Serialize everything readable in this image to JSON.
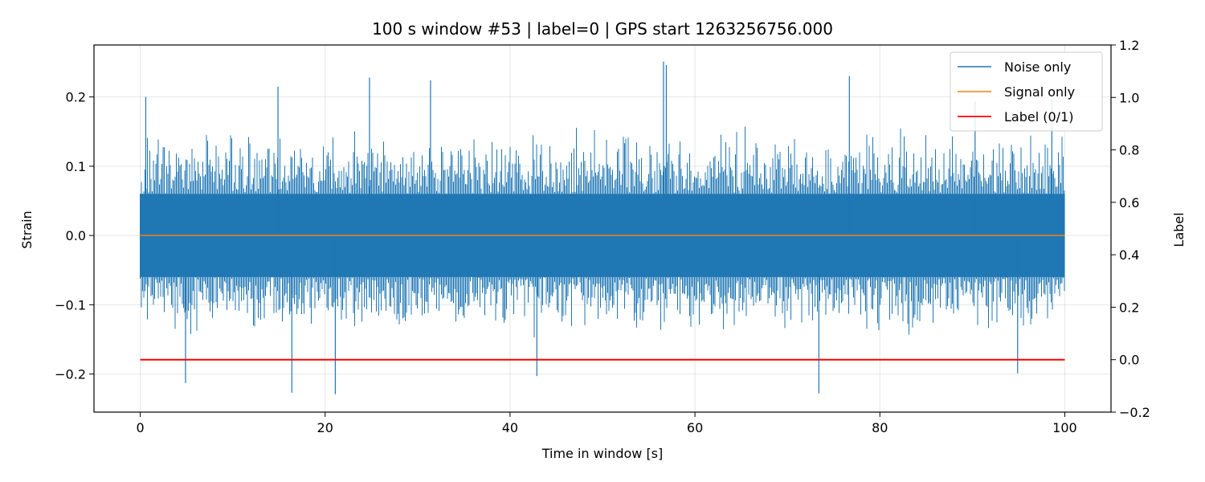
{
  "chart_data": {
    "type": "line",
    "title": "100 s window #53 | label=0 | GPS start 1263256756.000",
    "xlabel": "Time in window [s]",
    "ylabel": "Strain",
    "y2label": "Label",
    "xlim": [
      -5,
      105
    ],
    "ylim": [
      -0.255,
      0.275
    ],
    "y2lim": [
      -0.2,
      1.2
    ],
    "xticks": [
      0,
      20,
      40,
      60,
      80,
      100
    ],
    "xtick_labels": [
      "0",
      "20",
      "40",
      "60",
      "80",
      "100"
    ],
    "yticks": [
      -0.2,
      -0.1,
      0.0,
      0.1,
      0.2
    ],
    "ytick_labels": [
      "−0.2",
      "−0.1",
      "0.0",
      "0.1",
      "0.2"
    ],
    "y2ticks": [
      -0.2,
      0.0,
      0.2,
      0.4,
      0.6,
      0.8,
      1.0,
      1.2
    ],
    "y2tick_labels": [
      "−0.2",
      "0.0",
      "0.2",
      "0.4",
      "0.6",
      "0.8",
      "1.0",
      "1.2"
    ],
    "grid": true,
    "legend_position": "top-right",
    "series": [
      {
        "name": "Noise only",
        "axis": "left",
        "color": "#1f77b4",
        "x_range": [
          0,
          100
        ],
        "core_band": [
          -0.06,
          0.06
        ],
        "envelope": [
          -0.15,
          0.16
        ],
        "peaks": [
          {
            "x": 0.6,
            "y": 0.2
          },
          {
            "x": 4.9,
            "y": -0.213
          },
          {
            "x": 14.9,
            "y": 0.215
          },
          {
            "x": 16.4,
            "y": -0.227
          },
          {
            "x": 21.1,
            "y": -0.229
          },
          {
            "x": 24.8,
            "y": 0.228
          },
          {
            "x": 31.4,
            "y": 0.224
          },
          {
            "x": 42.9,
            "y": -0.203
          },
          {
            "x": 56.6,
            "y": 0.251
          },
          {
            "x": 56.9,
            "y": 0.246
          },
          {
            "x": 73.4,
            "y": -0.228
          },
          {
            "x": 76.7,
            "y": 0.23
          },
          {
            "x": 90.3,
            "y": 0.193
          },
          {
            "x": 94.9,
            "y": -0.199
          },
          {
            "x": 98.6,
            "y": 0.197
          }
        ]
      },
      {
        "name": "Signal only",
        "axis": "left",
        "color": "#ff7f0e",
        "x": [
          0,
          100
        ],
        "y": [
          0.0,
          0.0
        ]
      },
      {
        "name": "Label (0/1)",
        "axis": "right",
        "color": "#ff0000",
        "x": [
          0,
          100
        ],
        "y": [
          0,
          0
        ]
      }
    ]
  }
}
